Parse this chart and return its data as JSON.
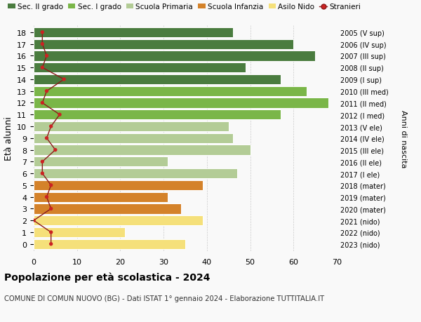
{
  "ages": [
    18,
    17,
    16,
    15,
    14,
    13,
    12,
    11,
    10,
    9,
    8,
    7,
    6,
    5,
    4,
    3,
    2,
    1,
    0
  ],
  "bar_values": [
    46,
    60,
    65,
    49,
    57,
    63,
    68,
    57,
    45,
    46,
    50,
    31,
    47,
    39,
    31,
    34,
    39,
    21,
    35
  ],
  "bar_colors": [
    "#4a7c3f",
    "#4a7c3f",
    "#4a7c3f",
    "#4a7c3f",
    "#4a7c3f",
    "#7ab648",
    "#7ab648",
    "#7ab648",
    "#b3cc96",
    "#b3cc96",
    "#b3cc96",
    "#b3cc96",
    "#b3cc96",
    "#d4822a",
    "#d4822a",
    "#d4822a",
    "#f5e07a",
    "#f5e07a",
    "#f5e07a"
  ],
  "stranieri_values": [
    2,
    2,
    3,
    2,
    7,
    3,
    2,
    6,
    4,
    3,
    5,
    2,
    2,
    4,
    3,
    4,
    0,
    4,
    4
  ],
  "right_labels": [
    "2005 (V sup)",
    "2006 (IV sup)",
    "2007 (III sup)",
    "2008 (II sup)",
    "2009 (I sup)",
    "2010 (III med)",
    "2011 (II med)",
    "2012 (I med)",
    "2013 (V ele)",
    "2014 (IV ele)",
    "2015 (III ele)",
    "2016 (II ele)",
    "2017 (I ele)",
    "2018 (mater)",
    "2019 (mater)",
    "2020 (mater)",
    "2021 (nido)",
    "2022 (nido)",
    "2023 (nido)"
  ],
  "legend_labels": [
    "Sec. II grado",
    "Sec. I grado",
    "Scuola Primaria",
    "Scuola Infanzia",
    "Asilo Nido",
    "Stranieri"
  ],
  "legend_colors": [
    "#4a7c3f",
    "#7ab648",
    "#b3cc96",
    "#d4822a",
    "#f5e07a",
    "#cc2222"
  ],
  "ylabel": "Età alunni",
  "right_ylabel": "Anni di nascita",
  "title": "Popolazione per età scolastica - 2024",
  "subtitle": "COMUNE DI COMUN NUOVO (BG) - Dati ISTAT 1° gennaio 2024 - Elaborazione TUTTITALIA.IT",
  "xlim": [
    0,
    70
  ],
  "xticks": [
    0,
    10,
    20,
    30,
    40,
    50,
    60,
    70
  ],
  "background_color": "#f9f9f9",
  "bar_edge_color": "white",
  "grid_color": "#cccccc",
  "stranieri_line_color": "#8b1a1a",
  "stranieri_dot_color": "#cc2222"
}
